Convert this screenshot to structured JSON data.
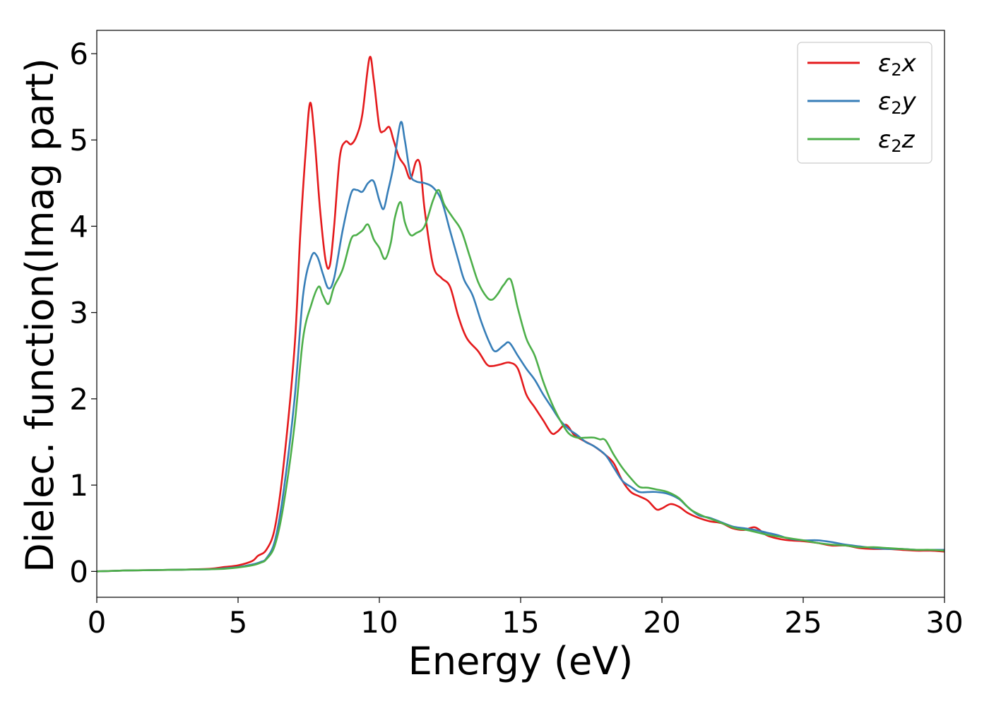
{
  "chart_data": {
    "type": "line",
    "xlabel": "Energy (eV)",
    "ylabel": "Dielec. function(Imag part)",
    "xlim": [
      0,
      30
    ],
    "ylim": [
      -0.3,
      6.27
    ],
    "xticks": [
      0,
      5,
      10,
      15,
      20,
      25,
      30
    ],
    "xtick_labels": [
      "0",
      "5",
      "10",
      "15",
      "20",
      "25",
      "30"
    ],
    "yticks": [
      0,
      1,
      2,
      3,
      4,
      5,
      6
    ],
    "ytick_labels": [
      "0",
      "1",
      "2",
      "3",
      "4",
      "5",
      "6"
    ],
    "grid": false,
    "legend_position": "top-right",
    "series": [
      {
        "name": "ε2x",
        "legend_main": "ε",
        "legend_sub": "2",
        "legend_suffix": "x",
        "color": "#e41a1c",
        "x": [
          0,
          1,
          2,
          3,
          4,
          4.5,
          5,
          5.5,
          5.7,
          6,
          6.3,
          6.6,
          7,
          7.2,
          7.4,
          7.55,
          7.7,
          7.9,
          8.1,
          8.25,
          8.4,
          8.6,
          8.8,
          9,
          9.2,
          9.4,
          9.65,
          9.8,
          10,
          10.15,
          10.35,
          10.5,
          10.7,
          10.9,
          11.1,
          11.3,
          11.45,
          11.6,
          11.9,
          12.2,
          12.5,
          12.8,
          13.1,
          13.5,
          13.8,
          14,
          14.3,
          14.6,
          14.9,
          15.2,
          15.5,
          15.8,
          16.1,
          16.3,
          16.6,
          16.9,
          17.2,
          17.6,
          18,
          18.3,
          18.6,
          18.9,
          19.2,
          19.5,
          19.8,
          20,
          20.3,
          20.6,
          20.9,
          21.3,
          21.7,
          22.1,
          22.5,
          22.9,
          23.3,
          23.7,
          24.1,
          24.5,
          25,
          25.5,
          26,
          26.5,
          27,
          27.5,
          28,
          28.5,
          29,
          29.5,
          30
        ],
        "y": [
          0,
          0.01,
          0.015,
          0.02,
          0.03,
          0.05,
          0.07,
          0.12,
          0.18,
          0.25,
          0.5,
          1.2,
          2.6,
          3.9,
          4.9,
          5.43,
          5.05,
          4.2,
          3.6,
          3.55,
          4.0,
          4.8,
          4.98,
          4.95,
          5.05,
          5.3,
          5.95,
          5.7,
          5.15,
          5.1,
          5.15,
          5.0,
          4.8,
          4.7,
          4.55,
          4.75,
          4.7,
          4.2,
          3.55,
          3.4,
          3.3,
          2.95,
          2.7,
          2.55,
          2.4,
          2.38,
          2.4,
          2.42,
          2.35,
          2.05,
          1.9,
          1.75,
          1.6,
          1.62,
          1.7,
          1.58,
          1.52,
          1.45,
          1.35,
          1.25,
          1.05,
          0.92,
          0.87,
          0.82,
          0.72,
          0.73,
          0.78,
          0.75,
          0.68,
          0.62,
          0.58,
          0.56,
          0.5,
          0.48,
          0.51,
          0.42,
          0.38,
          0.36,
          0.35,
          0.33,
          0.3,
          0.3,
          0.27,
          0.26,
          0.26,
          0.25,
          0.24,
          0.24,
          0.23
        ]
      },
      {
        "name": "ε2y",
        "legend_main": "ε",
        "legend_sub": "2",
        "legend_suffix": "y",
        "color": "#377eb8",
        "x": [
          0,
          1,
          2,
          3,
          4,
          4.5,
          5,
          5.5,
          5.8,
          6,
          6.3,
          6.6,
          7,
          7.3,
          7.6,
          7.8,
          8,
          8.2,
          8.4,
          8.7,
          9,
          9.2,
          9.4,
          9.6,
          9.8,
          10,
          10.15,
          10.3,
          10.5,
          10.75,
          10.9,
          11.1,
          11.3,
          11.6,
          11.9,
          12.2,
          12.5,
          12.8,
          13,
          13.3,
          13.6,
          13.9,
          14.1,
          14.4,
          14.6,
          14.9,
          15.2,
          15.5,
          15.8,
          16.1,
          16.4,
          16.7,
          17,
          17.3,
          17.6,
          18,
          18.3,
          18.6,
          18.9,
          19.2,
          19.5,
          19.8,
          20.2,
          20.6,
          20.9,
          21.3,
          21.7,
          22.1,
          22.5,
          22.9,
          23.3,
          23.7,
          24.1,
          24.5,
          25,
          25.5,
          26,
          26.5,
          27,
          27.5,
          28,
          28.5,
          29,
          29.5,
          30
        ],
        "y": [
          0,
          0.01,
          0.015,
          0.02,
          0.025,
          0.035,
          0.05,
          0.08,
          0.11,
          0.15,
          0.35,
          0.9,
          2.0,
          3.2,
          3.65,
          3.65,
          3.45,
          3.28,
          3.4,
          3.95,
          4.38,
          4.42,
          4.4,
          4.5,
          4.52,
          4.3,
          4.2,
          4.4,
          4.7,
          5.2,
          5.0,
          4.6,
          4.52,
          4.5,
          4.45,
          4.3,
          3.95,
          3.6,
          3.38,
          3.2,
          2.9,
          2.65,
          2.55,
          2.62,
          2.65,
          2.5,
          2.35,
          2.22,
          2.05,
          1.9,
          1.75,
          1.65,
          1.58,
          1.5,
          1.45,
          1.35,
          1.2,
          1.05,
          0.98,
          0.92,
          0.92,
          0.92,
          0.9,
          0.84,
          0.75,
          0.65,
          0.62,
          0.57,
          0.52,
          0.5,
          0.48,
          0.45,
          0.42,
          0.38,
          0.36,
          0.36,
          0.34,
          0.31,
          0.29,
          0.27,
          0.26,
          0.26,
          0.25,
          0.25,
          0.25
        ]
      },
      {
        "name": "ε2z",
        "legend_main": "ε",
        "legend_sub": "2",
        "legend_suffix": "z",
        "color": "#4daf4a",
        "x": [
          0,
          1,
          2,
          3,
          4,
          4.5,
          5,
          5.5,
          5.8,
          6,
          6.3,
          6.6,
          7,
          7.3,
          7.6,
          7.85,
          8,
          8.2,
          8.4,
          8.7,
          9,
          9.2,
          9.4,
          9.6,
          9.8,
          10,
          10.2,
          10.4,
          10.55,
          10.75,
          10.9,
          11.1,
          11.3,
          11.6,
          11.9,
          12.1,
          12.3,
          12.6,
          12.9,
          13.2,
          13.5,
          13.8,
          14,
          14.2,
          14.4,
          14.65,
          14.9,
          15.2,
          15.5,
          15.8,
          16.1,
          16.4,
          16.7,
          17,
          17.3,
          17.6,
          17.8,
          18,
          18.3,
          18.6,
          18.9,
          19.2,
          19.5,
          19.8,
          20.2,
          20.6,
          21,
          21.4,
          21.8,
          22.2,
          22.6,
          23,
          23.4,
          23.8,
          24.2,
          24.6,
          25,
          25.5,
          26,
          26.5,
          27,
          27.5,
          28,
          28.5,
          29,
          29.5,
          30
        ],
        "y": [
          0,
          0.01,
          0.015,
          0.02,
          0.025,
          0.03,
          0.045,
          0.07,
          0.1,
          0.14,
          0.3,
          0.75,
          1.7,
          2.7,
          3.1,
          3.3,
          3.2,
          3.1,
          3.3,
          3.5,
          3.85,
          3.9,
          3.95,
          4.02,
          3.85,
          3.75,
          3.62,
          3.8,
          4.1,
          4.28,
          4.05,
          3.9,
          3.92,
          4.0,
          4.3,
          4.42,
          4.25,
          4.1,
          3.95,
          3.65,
          3.35,
          3.18,
          3.15,
          3.22,
          3.32,
          3.38,
          3.05,
          2.7,
          2.5,
          2.2,
          1.95,
          1.75,
          1.6,
          1.55,
          1.55,
          1.55,
          1.53,
          1.52,
          1.35,
          1.2,
          1.08,
          0.98,
          0.97,
          0.95,
          0.92,
          0.85,
          0.72,
          0.65,
          0.6,
          0.55,
          0.5,
          0.48,
          0.45,
          0.42,
          0.4,
          0.38,
          0.36,
          0.33,
          0.31,
          0.3,
          0.28,
          0.28,
          0.27,
          0.26,
          0.25,
          0.25,
          0.24
        ]
      }
    ]
  }
}
